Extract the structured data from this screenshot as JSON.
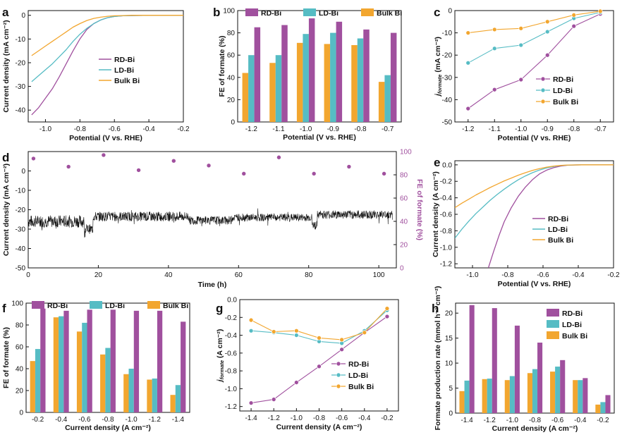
{
  "colors": {
    "rd": "#A0509E",
    "ld": "#56BCC4",
    "bulk": "#F2A62F"
  },
  "chart_data": [
    {
      "id": "a",
      "label": "a",
      "type": "line",
      "xlabel": "Potential (V vs. RHE)",
      "ylabel": "Current density (mA cm⁻²)",
      "xlim": [
        -1.1,
        -0.2
      ],
      "ylim": [
        -45,
        2
      ],
      "xticks": [
        "-1.0",
        "-0.8",
        "-0.6",
        "-0.4",
        "-0.2"
      ],
      "yticks": [
        "0",
        "-10",
        "-20",
        "-30",
        "-40"
      ],
      "legend": [
        "RD-Bi",
        "LD-Bi",
        "Bulk Bi"
      ],
      "legend_position": "center-right",
      "series": [
        {
          "name": "RD-Bi",
          "x": [
            -1.08,
            -1.04,
            -1.0,
            -0.96,
            -0.92,
            -0.88,
            -0.84,
            -0.8,
            -0.76,
            -0.72,
            -0.68,
            -0.64,
            -0.6,
            -0.55,
            -0.5,
            -0.4,
            -0.3,
            -0.2
          ],
          "y": [
            -42,
            -39,
            -35,
            -31,
            -26,
            -20.5,
            -15,
            -10,
            -6,
            -3.5,
            -2,
            -1,
            -0.5,
            -0.2,
            -0.1,
            0,
            0,
            0
          ]
        },
        {
          "name": "LD-Bi",
          "x": [
            -1.08,
            -1.04,
            -1.0,
            -0.96,
            -0.92,
            -0.88,
            -0.84,
            -0.8,
            -0.76,
            -0.72,
            -0.68,
            -0.64,
            -0.6,
            -0.55,
            -0.5,
            -0.4,
            -0.3,
            -0.2
          ],
          "y": [
            -28,
            -25.5,
            -23,
            -20.5,
            -17.5,
            -14.5,
            -11,
            -8,
            -5.5,
            -3.5,
            -2,
            -1,
            -0.5,
            -0.2,
            -0.1,
            0,
            0,
            0
          ]
        },
        {
          "name": "Bulk Bi",
          "x": [
            -1.08,
            -1.04,
            -1.0,
            -0.96,
            -0.92,
            -0.88,
            -0.84,
            -0.8,
            -0.76,
            -0.72,
            -0.68,
            -0.64,
            -0.6,
            -0.55,
            -0.5,
            -0.4,
            -0.3,
            -0.2
          ],
          "y": [
            -17,
            -15,
            -13,
            -11,
            -9,
            -7,
            -5,
            -3.5,
            -2.2,
            -1.3,
            -0.8,
            -0.4,
            -0.2,
            -0.1,
            0,
            0,
            0,
            0
          ]
        }
      ]
    },
    {
      "id": "b",
      "label": "b",
      "type": "bar",
      "xlabel": "Potential (V vs. RHE)",
      "ylabel": "FE of formate (%)",
      "ylim": [
        0,
        100
      ],
      "yticks": [
        "0",
        "20",
        "40",
        "60",
        "80",
        "100"
      ],
      "categories": [
        "-1.2",
        "-1.1",
        "-1.0",
        "-0.9",
        "-0.8",
        "-0.7"
      ],
      "legend": [
        "RD-Bi",
        "LD-Bi",
        "Bulk Bi"
      ],
      "legend_position": "top",
      "series": [
        {
          "name": "Bulk Bi",
          "values": [
            44,
            53,
            71,
            70,
            69,
            36
          ]
        },
        {
          "name": "LD-Bi",
          "values": [
            60,
            60,
            79,
            80,
            75,
            42
          ]
        },
        {
          "name": "RD-Bi",
          "values": [
            85,
            87,
            93,
            90,
            83,
            80
          ]
        }
      ]
    },
    {
      "id": "c",
      "label": "c",
      "type": "line",
      "xlabel": "Potential (V vs. RHE)",
      "ylabel_main": "j",
      "ylabel_sub": "formate",
      "ylabel_unit": " (mA cm⁻²)",
      "ylim": [
        -50,
        0
      ],
      "yticks": [
        "0",
        "-10",
        "-20",
        "-30",
        "-40",
        "-50"
      ],
      "categories": [
        "-1.2",
        "-1.1",
        "-1.0",
        "-0.9",
        "-0.8",
        "-0.7"
      ],
      "legend": [
        "RD-Bi",
        "LD-Bi",
        "Bulk Bi"
      ],
      "legend_position": "center-right",
      "series": [
        {
          "name": "RD-Bi",
          "values": [
            -44,
            -35.5,
            -31,
            -20,
            -7,
            -1.5
          ]
        },
        {
          "name": "LD-Bi",
          "values": [
            -23.5,
            -17,
            -15.5,
            -9.5,
            -3.5,
            -0.8
          ]
        },
        {
          "name": "Bulk Bi",
          "values": [
            -10,
            -8.5,
            -8,
            -5,
            -2,
            -0.3
          ]
        }
      ]
    },
    {
      "id": "d",
      "label": "d",
      "type": "line+scatter",
      "xlabel": "Time (h)",
      "ylabel": "Current density (mA cm⁻²)",
      "ylabel_right": "FE of formate (%)",
      "xlim": [
        0,
        105
      ],
      "ylim": [
        -50,
        10
      ],
      "ylim_right": [
        0,
        100
      ],
      "xticks": [
        "0",
        "20",
        "40",
        "60",
        "80",
        "100"
      ],
      "yticks": [
        "0",
        "-10",
        "-20",
        "-30",
        "-40",
        "-50"
      ],
      "yticks_right": [
        "0",
        "20",
        "40",
        "60",
        "80",
        "100"
      ],
      "fe_points": {
        "x": [
          1.5,
          11.5,
          21.5,
          31.5,
          41.5,
          51.5,
          61.5,
          71.5,
          81.5,
          91.5,
          101.5
        ],
        "y": [
          94,
          87,
          97,
          84,
          92,
          88,
          81,
          95,
          81,
          87,
          81
        ]
      },
      "current_segments": [
        {
          "from": 0,
          "to": 16,
          "mean": -26,
          "noise": 3.2
        },
        {
          "from": 16,
          "to": 18.5,
          "mean": -30,
          "noise": 2.5
        },
        {
          "from": 18.5,
          "to": 46,
          "mean": -23.5,
          "noise": 2.5
        },
        {
          "from": 46,
          "to": 58,
          "mean": -25.5,
          "noise": 2.2
        },
        {
          "from": 58,
          "to": 81,
          "mean": -24,
          "noise": 2.0
        },
        {
          "from": 81,
          "to": 82.5,
          "mean": -28,
          "noise": 2.2
        },
        {
          "from": 82.5,
          "to": 104,
          "mean": -22.5,
          "noise": 2.2
        }
      ]
    },
    {
      "id": "e",
      "label": "e",
      "type": "line",
      "xlabel": "Potential (V vs. RHE)",
      "ylabel": "Current density (A cm⁻²)",
      "xlim": [
        -1.1,
        -0.2
      ],
      "ylim": [
        -1.25,
        0.05
      ],
      "xticks": [
        "-1.0",
        "-0.8",
        "-0.6",
        "-0.4",
        "-0.2"
      ],
      "yticks": [
        "0.0",
        "-0.2",
        "-0.4",
        "-0.6",
        "-0.8",
        "-1.0",
        "-1.2"
      ],
      "legend": [
        "RD-Bi",
        "LD-Bi",
        "Bulk Bi"
      ],
      "legend_position": "center-right",
      "series": [
        {
          "name": "RD-Bi",
          "x": [
            -0.91,
            -0.88,
            -0.85,
            -0.82,
            -0.78,
            -0.74,
            -0.7,
            -0.66,
            -0.62,
            -0.58,
            -0.54,
            -0.5,
            -0.46,
            -0.42,
            -0.38,
            -0.3,
            -0.2
          ],
          "y": [
            -1.25,
            -1.05,
            -0.86,
            -0.69,
            -0.52,
            -0.38,
            -0.27,
            -0.18,
            -0.11,
            -0.065,
            -0.035,
            -0.015,
            -0.005,
            -0.001,
            0,
            0,
            0
          ]
        },
        {
          "name": "LD-Bi",
          "x": [
            -1.1,
            -1.06,
            -1.02,
            -0.98,
            -0.94,
            -0.9,
            -0.86,
            -0.82,
            -0.78,
            -0.74,
            -0.7,
            -0.66,
            -0.62,
            -0.58,
            -0.54,
            -0.5,
            -0.46,
            -0.42,
            -0.38,
            -0.3,
            -0.2
          ],
          "y": [
            -0.89,
            -0.78,
            -0.68,
            -0.59,
            -0.51,
            -0.43,
            -0.36,
            -0.295,
            -0.235,
            -0.18,
            -0.135,
            -0.095,
            -0.063,
            -0.038,
            -0.02,
            -0.009,
            -0.003,
            -0.001,
            0,
            0,
            0
          ]
        },
        {
          "name": "Bulk Bi",
          "x": [
            -1.1,
            -1.06,
            -1.02,
            -0.98,
            -0.94,
            -0.9,
            -0.86,
            -0.82,
            -0.78,
            -0.74,
            -0.7,
            -0.66,
            -0.62,
            -0.58,
            -0.54,
            -0.5,
            -0.46,
            -0.42,
            -0.38,
            -0.3,
            -0.2
          ],
          "y": [
            -0.52,
            -0.465,
            -0.415,
            -0.365,
            -0.32,
            -0.275,
            -0.235,
            -0.195,
            -0.16,
            -0.125,
            -0.095,
            -0.068,
            -0.046,
            -0.028,
            -0.015,
            -0.007,
            -0.002,
            -0.001,
            0,
            0,
            0
          ]
        }
      ]
    },
    {
      "id": "f",
      "label": "f",
      "type": "bar",
      "xlabel": "Current density (A cm⁻²)",
      "ylabel": "FE of formate (%)",
      "ylim": [
        0,
        100
      ],
      "yticks": [
        "0",
        "20",
        "40",
        "60",
        "80",
        "100"
      ],
      "categories": [
        "-0.2",
        "-0.4",
        "-0.6",
        "-0.8",
        "-1.0",
        "-1.2",
        "-1.4"
      ],
      "legend": [
        "RD-Bi",
        "LD-Bi",
        "Bulk Bi"
      ],
      "legend_position": "top",
      "series": [
        {
          "name": "Bulk Bi",
          "values": [
            47,
            87,
            74,
            53,
            35,
            30,
            16
          ]
        },
        {
          "name": "LD-Bi",
          "values": [
            58,
            88,
            82,
            59,
            40,
            31,
            25
          ]
        },
        {
          "name": "RD-Bi",
          "values": [
            95,
            93,
            94,
            94,
            93,
            93,
            83
          ]
        }
      ]
    },
    {
      "id": "g",
      "label": "g",
      "type": "line",
      "xlabel": "Current density (A cm⁻²)",
      "ylabel_main": "j",
      "ylabel_sub": "formate",
      "ylabel_unit": " (A cm⁻²)",
      "ylim": [
        -1.25,
        0
      ],
      "yticks": [
        "0.0",
        "-0.2",
        "-0.4",
        "-0.6",
        "-0.8",
        "-1.0",
        "-1.2"
      ],
      "categories": [
        "-1.4",
        "-1.2",
        "-1.0",
        "-0.8",
        "-0.6",
        "-0.4",
        "-0.2"
      ],
      "legend": [
        "RD-Bi",
        "LD-Bi",
        "Bulk Bi"
      ],
      "legend_position": "bottom-right",
      "series": [
        {
          "name": "RD-Bi",
          "values": [
            -1.16,
            -1.12,
            -0.93,
            -0.75,
            -0.56,
            -0.37,
            -0.19
          ]
        },
        {
          "name": "LD-Bi",
          "values": [
            -0.35,
            -0.37,
            -0.4,
            -0.47,
            -0.49,
            -0.35,
            -0.12
          ]
        },
        {
          "name": "Bulk Bi",
          "values": [
            -0.23,
            -0.36,
            -0.35,
            -0.43,
            -0.45,
            -0.37,
            -0.1
          ]
        }
      ]
    },
    {
      "id": "h",
      "label": "h",
      "type": "bar",
      "xlabel": "Current density (A cm⁻²)",
      "ylabel": "Formate production rate (mmol h⁻¹ cm⁻²)",
      "ylim": [
        0,
        22
      ],
      "yticks": [
        "0",
        "5",
        "10",
        "15",
        "20"
      ],
      "categories": [
        "-1.4",
        "-1.2",
        "-1.0",
        "-0.8",
        "-0.6",
        "-0.4",
        "-0.2"
      ],
      "legend": [
        "RD-Bi",
        "LD-Bi",
        "Bulk Bi"
      ],
      "legend_position": "top-right",
      "series": [
        {
          "name": "Bulk Bi",
          "values": [
            4.4,
            6.8,
            6.6,
            8.0,
            8.3,
            6.6,
            1.7
          ]
        },
        {
          "name": "LD-Bi",
          "values": [
            6.5,
            6.9,
            7.4,
            8.8,
            9.3,
            6.6,
            2.2
          ]
        },
        {
          "name": "RD-Bi",
          "values": [
            21.6,
            21.0,
            17.5,
            14.1,
            10.6,
            7.0,
            3.6
          ]
        }
      ]
    }
  ]
}
